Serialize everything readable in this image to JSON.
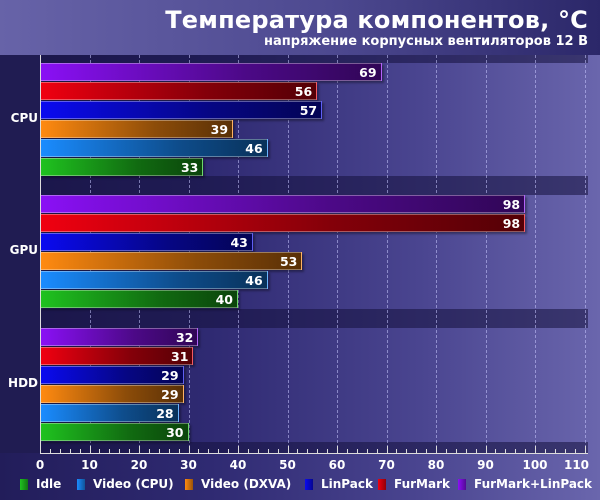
{
  "header": {
    "title": "Температура компонентов, °C",
    "subtitle": "напряжение корпусных вентиляторов 12 В"
  },
  "chart_data": {
    "type": "bar",
    "orientation": "horizontal",
    "title": "Температура компонентов, °C",
    "subtitle": "напряжение корпусных вентиляторов 12 В",
    "xlabel": "",
    "ylabel": "",
    "xlim": [
      0,
      110
    ],
    "xticks": [
      0,
      10,
      20,
      30,
      40,
      50,
      60,
      70,
      80,
      90,
      100,
      110
    ],
    "grid": true,
    "legend_position": "bottom",
    "categories": [
      "CPU",
      "GPU",
      "HDD"
    ],
    "series": [
      {
        "name": "Idle",
        "color": "#1fc21f",
        "values": [
          33,
          40,
          30
        ]
      },
      {
        "name": "Video (CPU)",
        "color": "#1a8cff",
        "values": [
          46,
          46,
          28
        ]
      },
      {
        "name": "Video (DXVA)",
        "color": "#ff8a10",
        "values": [
          39,
          53,
          29
        ]
      },
      {
        "name": "LinPack",
        "color": "#0a0af0",
        "values": [
          57,
          43,
          29
        ]
      },
      {
        "name": "FurMark",
        "color": "#f00010",
        "values": [
          56,
          98,
          31
        ]
      },
      {
        "name": "FurMark+LinPack",
        "color": "#8a10f5",
        "values": [
          69,
          98,
          32
        ]
      }
    ]
  },
  "legend": {
    "items": [
      "Idle",
      "Video (CPU)",
      "Video (DXVA)",
      "LinPack",
      "FurMark",
      "FurMark+LinPack"
    ]
  }
}
